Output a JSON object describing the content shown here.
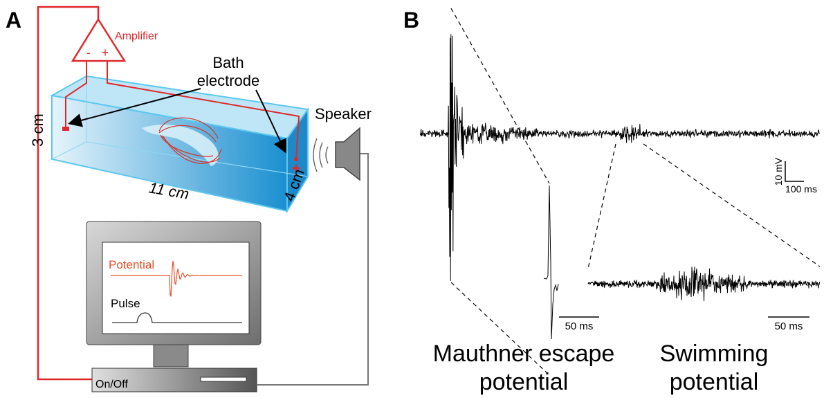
{
  "panel_a": {
    "label": "A",
    "amplifier": {
      "label": "Amplifier",
      "minus": "-",
      "plus": "+"
    },
    "bath_electrode": [
      "Bath",
      "electrode"
    ],
    "speaker": "Speaker",
    "dimensions": {
      "height": "3 cm",
      "length": "11 cm",
      "depth": "4 cm"
    },
    "monitor": {
      "potential": "Potential",
      "pulse": "Pulse"
    },
    "power_button": "On/Off"
  },
  "panel_b": {
    "label": "B",
    "scale_bar": {
      "voltage": "10 mV",
      "time": "100 ms"
    },
    "insets": [
      {
        "scale": "50 ms",
        "caption": [
          "Mauthner escape",
          "potential"
        ]
      },
      {
        "scale": "50 ms",
        "caption": [
          "Swimming",
          "potential"
        ]
      }
    ]
  }
}
